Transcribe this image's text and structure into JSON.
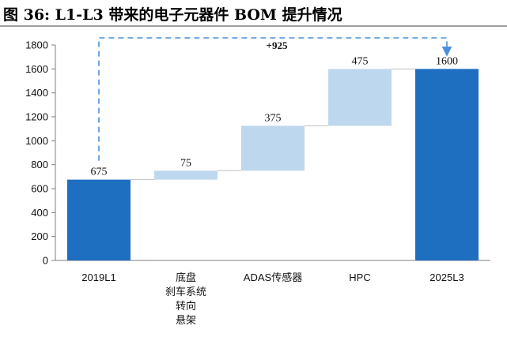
{
  "header": {
    "title": "图 36:  L1-L3 带来的电子元器件 BOM 提升情况"
  },
  "colors": {
    "total_bar": "#1f6fc1",
    "increment_bar": "#bdd7ee",
    "dashed_line": "#4a90d9",
    "connector": "#bfbfbf",
    "axis": "#7f7f7f"
  },
  "chart_data": {
    "type": "bar",
    "subtype": "waterfall",
    "title": "L1-L3 带来的电子元器件 BOM 提升情况",
    "xlabel": "",
    "ylabel": "",
    "categories": [
      [
        "2019L1"
      ],
      [
        "底盘",
        "刹车系统",
        "转向",
        "悬架"
      ],
      [
        "ADAS传感器"
      ],
      [
        "HPC"
      ],
      [
        "2025L3"
      ]
    ],
    "values": [
      675,
      75,
      375,
      475,
      1600
    ],
    "kinds": [
      "total",
      "increment",
      "increment",
      "increment",
      "total"
    ],
    "data_labels": [
      "675",
      "75",
      "375",
      "475",
      "1600"
    ],
    "ylim": [
      0,
      1800
    ],
    "yticks": [
      0,
      200,
      400,
      600,
      800,
      1000,
      1200,
      1400,
      1600,
      1800
    ],
    "grid": false,
    "annotation": {
      "text": "+925",
      "from_category": 0,
      "to_category": 4
    }
  }
}
